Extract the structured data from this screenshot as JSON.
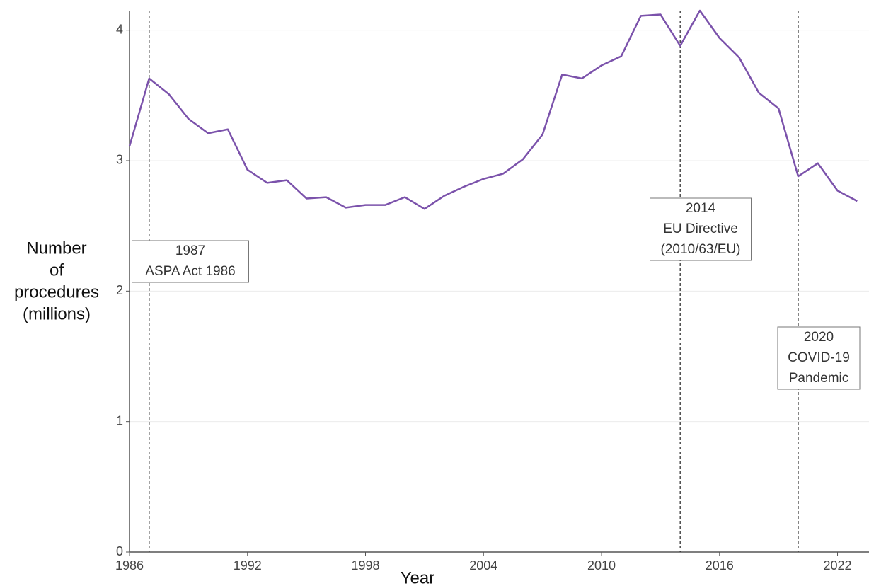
{
  "chart_data": {
    "type": "line",
    "xlabel": "Year",
    "ylabel": [
      "Number",
      "of",
      "procedures",
      "(millions)"
    ],
    "x": [
      1986,
      1987,
      1988,
      1989,
      1990,
      1991,
      1992,
      1993,
      1994,
      1995,
      1996,
      1997,
      1998,
      1999,
      2000,
      2001,
      2002,
      2003,
      2004,
      2005,
      2006,
      2007,
      2008,
      2009,
      2010,
      2011,
      2012,
      2013,
      2014,
      2015,
      2016,
      2017,
      2018,
      2019,
      2020,
      2021,
      2022,
      2023
    ],
    "series": [
      {
        "color": "#7b52ab",
        "values": [
          3.11,
          3.63,
          3.51,
          3.32,
          3.21,
          3.24,
          2.93,
          2.83,
          2.85,
          2.71,
          2.72,
          2.64,
          2.66,
          2.66,
          2.72,
          2.63,
          2.73,
          2.8,
          2.86,
          2.9,
          3.01,
          3.2,
          3.66,
          3.63,
          3.73,
          3.8,
          4.11,
          4.12,
          3.88,
          4.15,
          3.94,
          3.79,
          3.52,
          3.4,
          2.88,
          2.98,
          2.77,
          2.69
        ]
      }
    ],
    "xlim": [
      1986,
      2023.6
    ],
    "ylim": [
      0,
      4.15
    ],
    "xticks": [
      1986,
      1992,
      1998,
      2004,
      2010,
      2016,
      2022
    ],
    "yticks": [
      0,
      1,
      2,
      3,
      4
    ],
    "grid": true,
    "annotations": [
      {
        "x": 1987,
        "lines": [
          "1987",
          "ASPA Act 1986"
        ]
      },
      {
        "x": 2014,
        "lines": [
          "2014",
          "EU Directive",
          "(2010/63/EU)"
        ]
      },
      {
        "x": 2020,
        "lines": [
          "2020",
          "COVID-19",
          "Pandemic"
        ]
      }
    ]
  }
}
